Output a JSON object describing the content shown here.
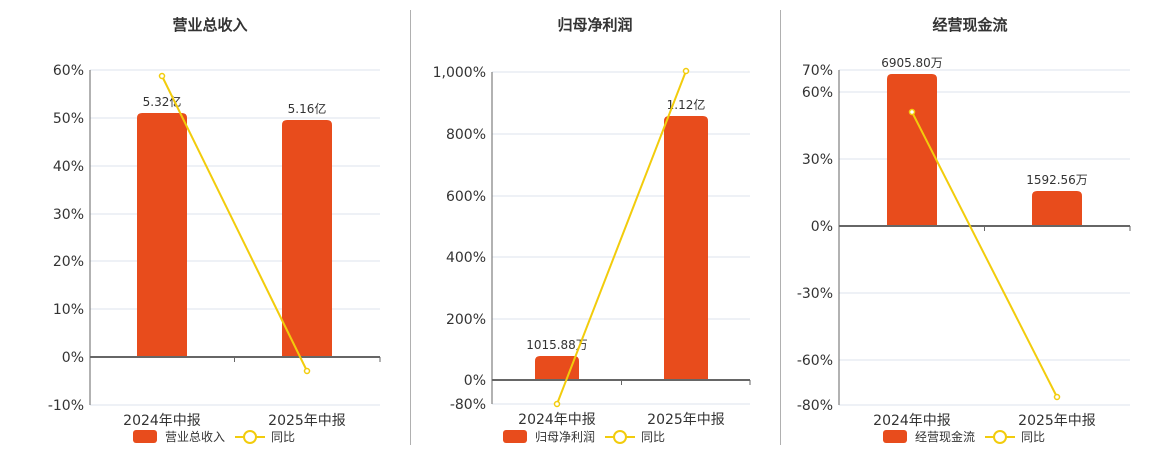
{
  "colors": {
    "bar": "#E84C1C",
    "line": "#F2CC0C",
    "grid": "#dde3ee",
    "axis": "#666666"
  },
  "legend": {
    "yoy_label": "同比"
  },
  "chart_data": [
    {
      "type": "bar",
      "title": "营业总收入",
      "categories": [
        "2024年中报",
        "2025年中报"
      ],
      "series": [
        {
          "name": "营业总收入",
          "type": "bar",
          "values": [
            5.32,
            5.16
          ],
          "unit": "亿",
          "labels": [
            "5.32亿",
            "5.16亿"
          ]
        },
        {
          "name": "同比",
          "type": "line",
          "values": [
            58.6,
            -3.0
          ],
          "unit": "%"
        }
      ],
      "y_ticks": [
        "60%",
        "50%",
        "40%",
        "30%",
        "20%",
        "10%",
        "0%",
        "-10%"
      ],
      "ylim": [
        -10,
        60
      ],
      "grid": true,
      "legend_position": "bottom"
    },
    {
      "type": "bar",
      "title": "归母净利润",
      "categories": [
        "2024年中报",
        "2025年中报"
      ],
      "series": [
        {
          "name": "归母净利润",
          "type": "bar",
          "values": [
            0.1016,
            1.12
          ],
          "unit": "亿",
          "labels": [
            "1015.88万",
            "1.12亿"
          ]
        },
        {
          "name": "同比",
          "type": "line",
          "values": [
            -80,
            1003
          ],
          "unit": "%"
        }
      ],
      "y_ticks": [
        "1,000%",
        "800%",
        "600%",
        "400%",
        "200%",
        "0%",
        "-80%"
      ],
      "ylim": [
        -80,
        1000
      ],
      "grid": true,
      "legend_position": "bottom"
    },
    {
      "type": "bar",
      "title": "经营现金流",
      "categories": [
        "2024年中报",
        "2025年中报"
      ],
      "series": [
        {
          "name": "经营现金流",
          "type": "bar",
          "values": [
            6905.8,
            1592.56
          ],
          "unit": "万",
          "labels": [
            "6905.80万",
            "1592.56万"
          ]
        },
        {
          "name": "同比",
          "type": "line",
          "values": [
            51,
            -77
          ],
          "unit": "%"
        }
      ],
      "y_ticks": [
        "70%",
        "60%",
        "30%",
        "0%",
        "-30%",
        "-60%",
        "-80%"
      ],
      "ylim": [
        -80,
        70
      ],
      "grid": true,
      "legend_position": "bottom"
    }
  ],
  "panels": [
    {
      "title": "营业总收入",
      "legend_bar": "营业总收入",
      "yticks": [
        {
          "label": "60%",
          "y": 70
        },
        {
          "label": "50%",
          "y": 118
        },
        {
          "label": "40%",
          "y": 166
        },
        {
          "label": "30%",
          "y": 214
        },
        {
          "label": "20%",
          "y": 261
        },
        {
          "label": "10%",
          "y": 309
        },
        {
          "label": "0%",
          "y": 357
        },
        {
          "label": "-10%",
          "y": 405
        }
      ],
      "zero_y": 357,
      "bars": [
        {
          "cat": "2024年中报",
          "label": "5.32亿",
          "top": 113
        },
        {
          "cat": "2025年中报",
          "label": "5.16亿",
          "top": 120
        }
      ],
      "line": [
        {
          "y": 76
        },
        {
          "y": 371
        }
      ]
    },
    {
      "title": "归母净利润",
      "legend_bar": "归母净利润",
      "yticks": [
        {
          "label": "1,000%",
          "y": 72
        },
        {
          "label": "800%",
          "y": 134
        },
        {
          "label": "600%",
          "y": 196
        },
        {
          "label": "400%",
          "y": 257
        },
        {
          "label": "200%",
          "y": 319
        },
        {
          "label": "0%",
          "y": 380
        },
        {
          "label": "-80%",
          "y": 404
        }
      ],
      "zero_y": 380,
      "bars": [
        {
          "cat": "2024年中报",
          "label": "1015.88万",
          "top": 356
        },
        {
          "cat": "2025年中报",
          "label": "1.12亿",
          "top": 116
        }
      ],
      "line": [
        {
          "y": 404
        },
        {
          "y": 71
        }
      ]
    },
    {
      "title": "经营现金流",
      "legend_bar": "经营现金流",
      "yticks": [
        {
          "label": "70%",
          "y": 70
        },
        {
          "label": "60%",
          "y": 92
        },
        {
          "label": "30%",
          "y": 159
        },
        {
          "label": "0%",
          "y": 226
        },
        {
          "label": "-30%",
          "y": 293
        },
        {
          "label": "-60%",
          "y": 360
        },
        {
          "label": "-80%",
          "y": 405
        }
      ],
      "zero_y": 226,
      "bars": [
        {
          "cat": "2024年中报",
          "label": "6905.80万",
          "top": 74
        },
        {
          "cat": "2025年中报",
          "label": "1592.56万",
          "top": 191
        }
      ],
      "line": [
        {
          "y": 112
        },
        {
          "y": 397
        }
      ]
    }
  ]
}
